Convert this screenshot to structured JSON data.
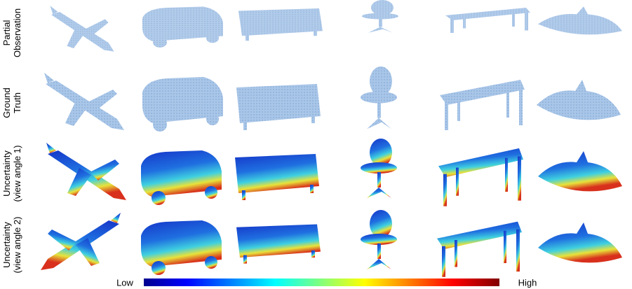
{
  "rows": [
    {
      "lines": [
        "Partial",
        "Observation"
      ]
    },
    {
      "lines": [
        "Ground",
        "Truth"
      ]
    },
    {
      "lines": [
        "Uncertainty",
        "(view angle 1)"
      ]
    },
    {
      "lines": [
        "Uncertainty",
        "(view angle 2)"
      ]
    }
  ],
  "colorbar": {
    "low": "Low",
    "high": "High"
  }
}
